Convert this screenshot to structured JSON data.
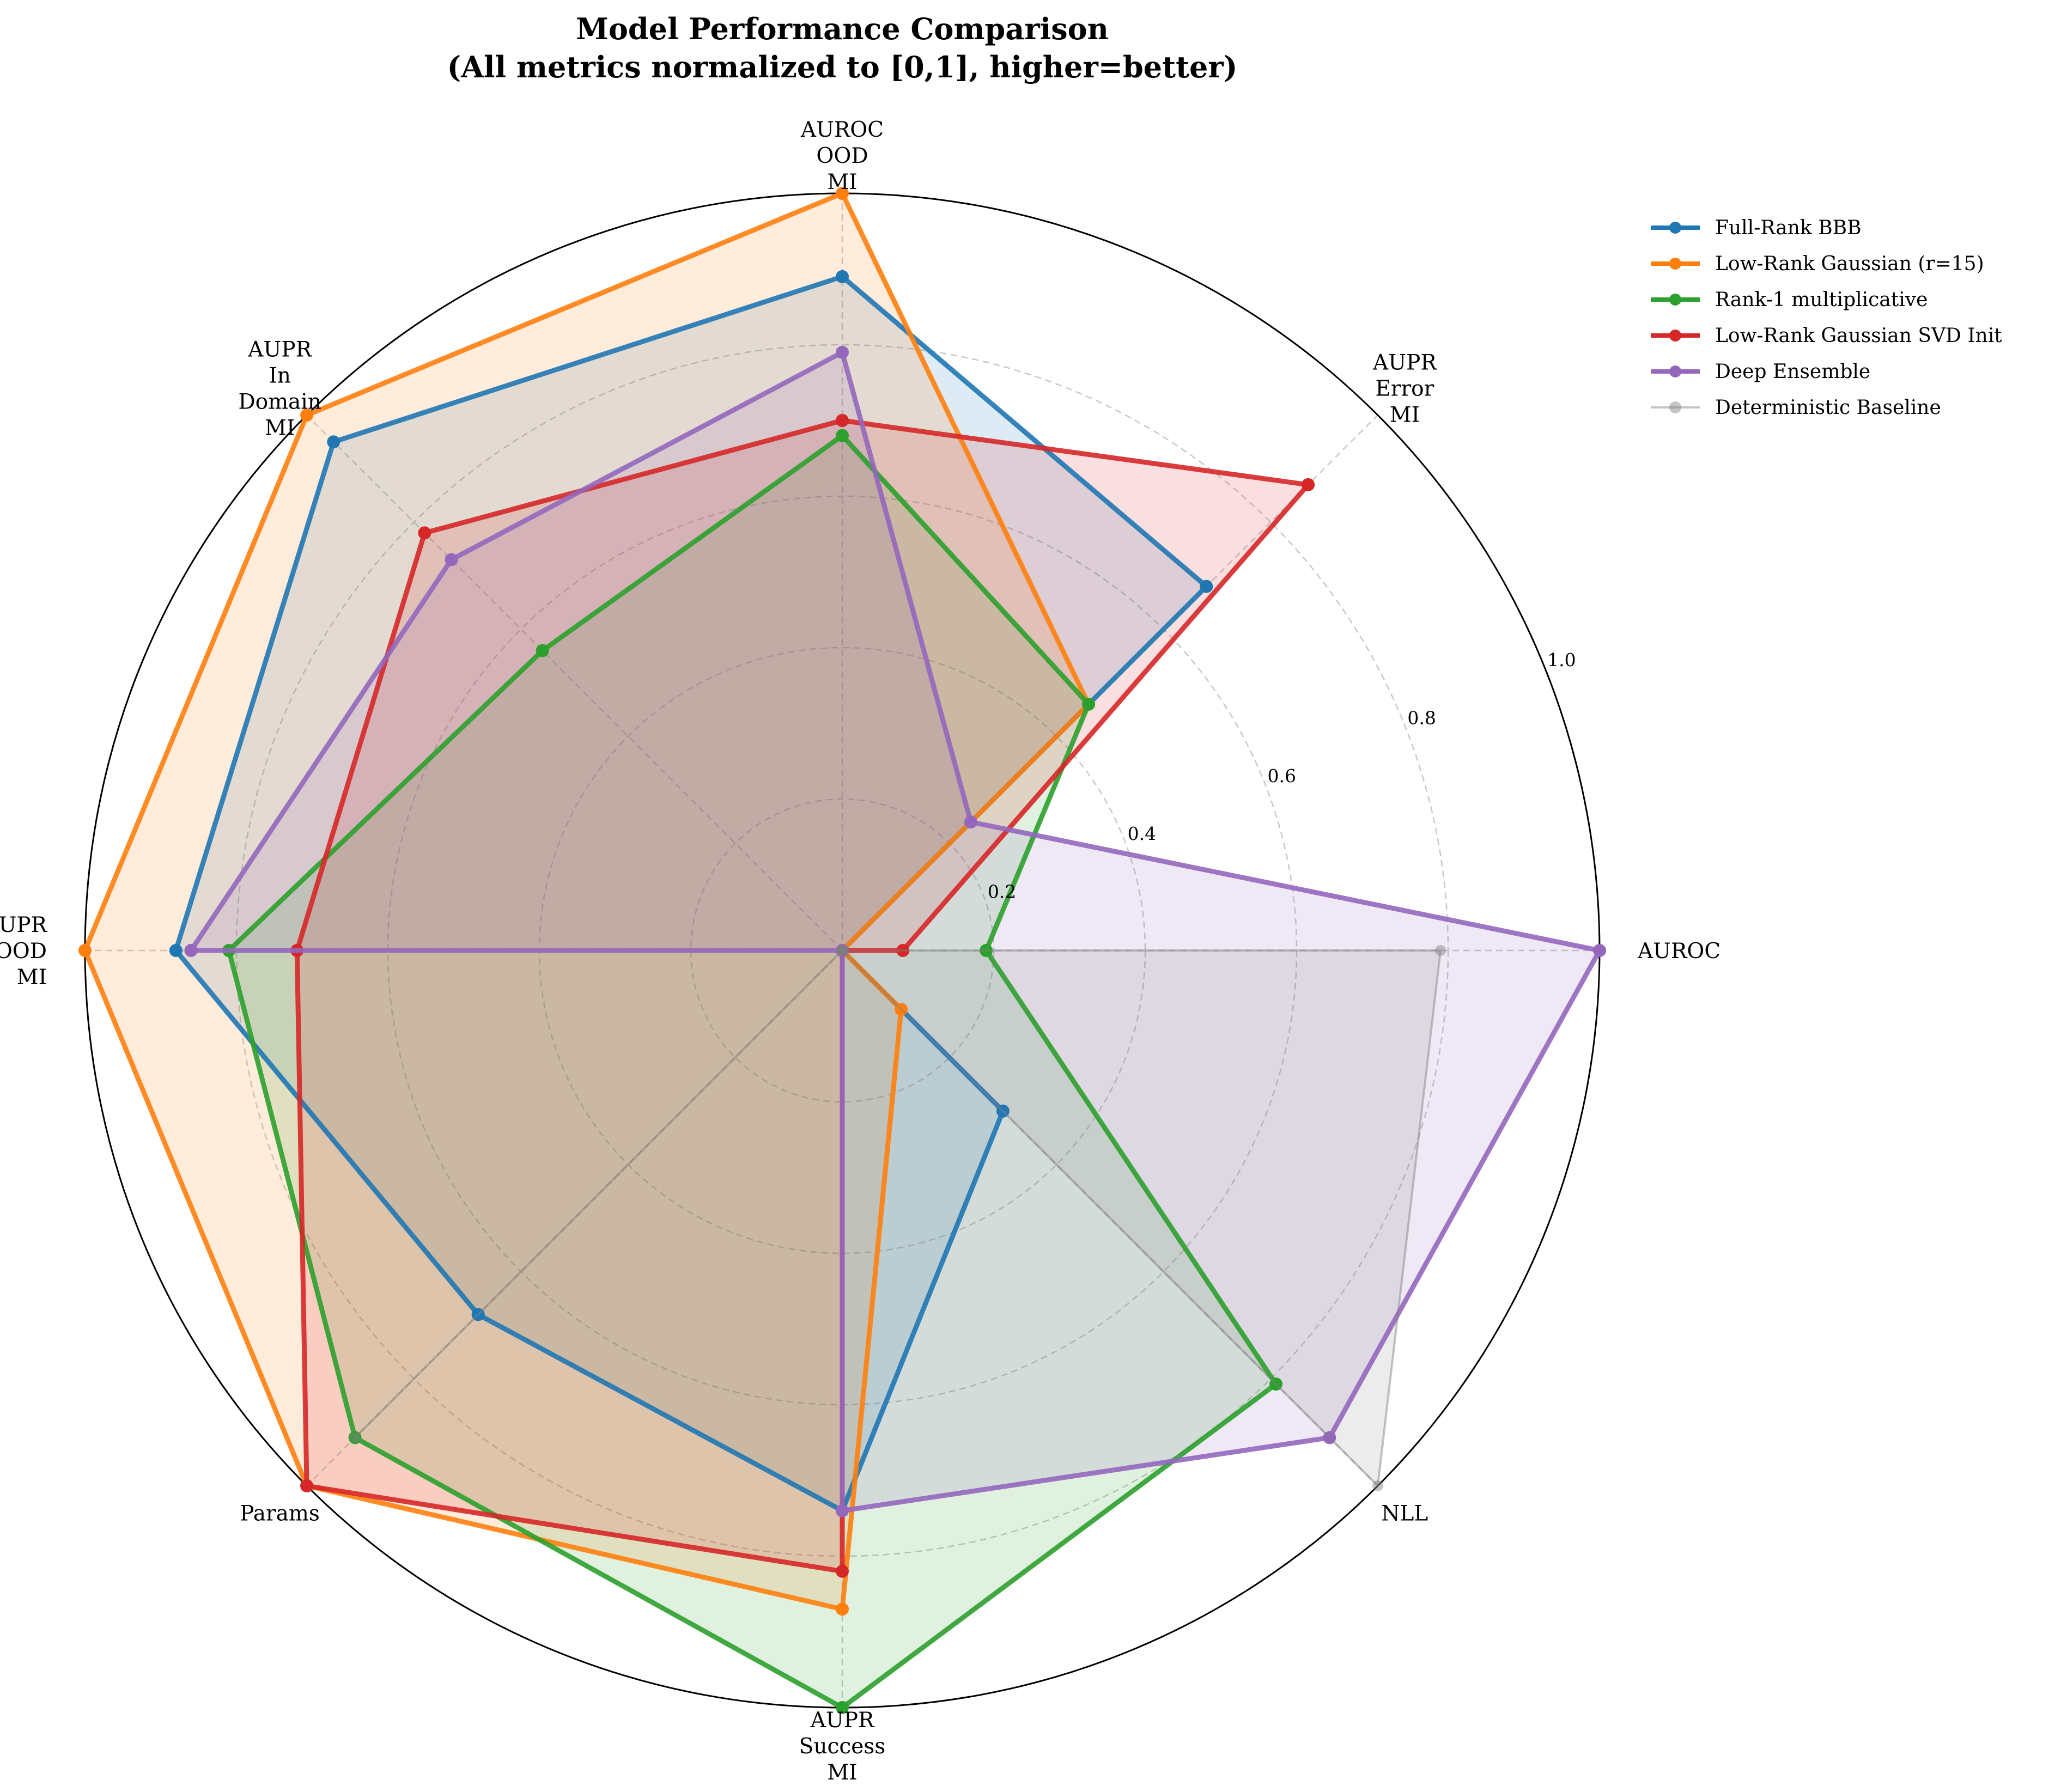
{
  "chart_data": {
    "type": "radar",
    "title": "Model Performance Comparison",
    "subtitle": "(All metrics normalized to [0,1], higher=better)",
    "axes": [
      [
        "AUROC"
      ],
      [
        "AUPR",
        "Error",
        "MI"
      ],
      [
        "AUROC",
        "OOD",
        "MI"
      ],
      [
        "AUPR",
        "In",
        "Domain",
        "MI"
      ],
      [
        "AUPR",
        "OOD",
        "MI"
      ],
      [
        "Params"
      ],
      [
        "AUPR",
        "Success",
        "MI"
      ],
      [
        "NLL"
      ]
    ],
    "rlim": [
      0,
      1
    ],
    "rticks": [
      "0.2",
      "0.4",
      "0.6",
      "0.8",
      "1.0"
    ],
    "grid": true,
    "legend_position": "upper right, outside",
    "series": [
      {
        "name": "Full-Rank BBB",
        "color": "#1f77b4",
        "values": [
          0.0,
          0.68,
          0.89,
          0.95,
          0.88,
          0.68,
          0.74,
          0.3
        ]
      },
      {
        "name": "Low-Rank Gaussian (r=15)",
        "color": "#ff7f0e",
        "values": [
          0.0,
          0.46,
          1.0,
          1.0,
          1.0,
          1.0,
          0.87,
          0.11
        ]
      },
      {
        "name": "Rank-1 multiplicative",
        "color": "#2ca02c",
        "values": [
          0.19,
          0.46,
          0.68,
          0.56,
          0.81,
          0.91,
          1.0,
          0.81
        ]
      },
      {
        "name": "Low-Rank Gaussian SVD Init",
        "color": "#d62728",
        "values": [
          0.08,
          0.87,
          0.7,
          0.78,
          0.72,
          1.0,
          0.82,
          0.0
        ]
      },
      {
        "name": "Deep Ensemble",
        "color": "#9467bd",
        "values": [
          1.0,
          0.24,
          0.79,
          0.73,
          0.86,
          0.0,
          0.74,
          0.91
        ]
      },
      {
        "name": "Deterministic Baseline",
        "color": "#7f7f7f",
        "values": [
          0.79,
          0.0,
          0.0,
          0.0,
          0.0,
          0.91,
          0.0,
          1.0
        ]
      }
    ]
  }
}
